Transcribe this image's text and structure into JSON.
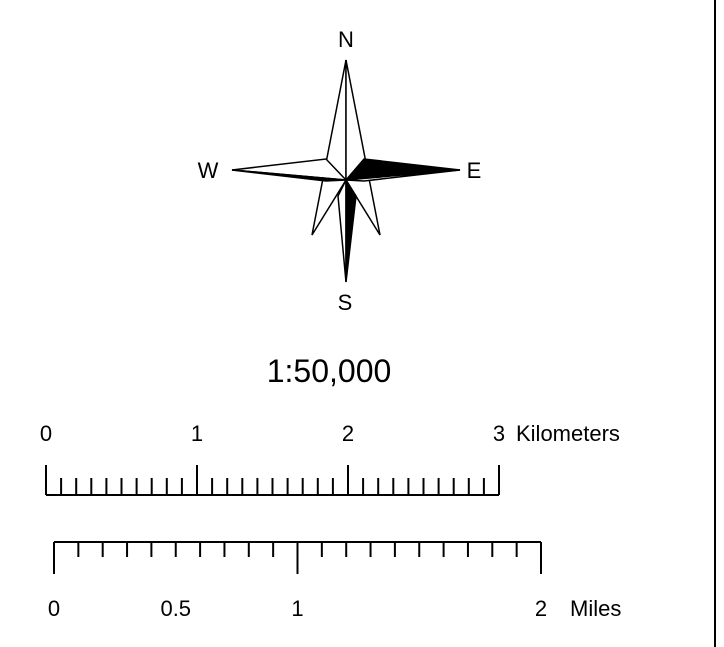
{
  "compass": {
    "north_label": "N",
    "south_label": "S",
    "east_label": "E",
    "west_label": "W"
  },
  "scale_ratio": "1:50,000",
  "km_scale": {
    "labels": [
      "0",
      "1",
      "2",
      "3"
    ],
    "unit": "Kilometers",
    "major_divisions": 3,
    "minor_per_major": 10
  },
  "mile_scale": {
    "labels": [
      "0",
      "0.5",
      "1",
      "2"
    ],
    "label_values": [
      0,
      0.5,
      1,
      2
    ],
    "unit": "Miles",
    "max_value": 2,
    "minor_divisions": 20
  },
  "colors": {
    "ink": "#000000",
    "paper": "#ffffff"
  }
}
